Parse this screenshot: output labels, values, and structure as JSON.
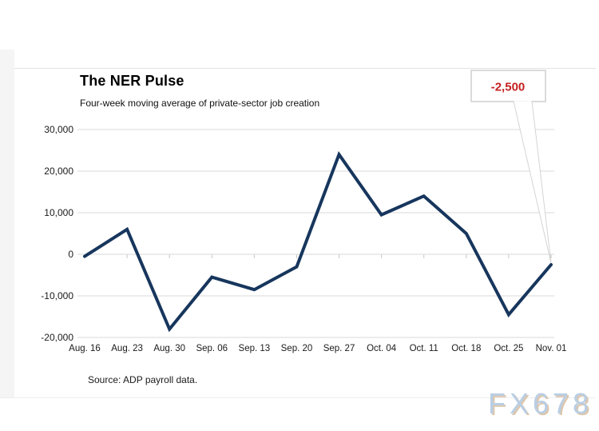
{
  "header": {
    "title": "The NER Pulse",
    "subtitle": "Four-week moving average of private-sector job creation"
  },
  "callout": {
    "label": "-2,500",
    "text_color": "#c42020",
    "border_color": "#cfcfcf"
  },
  "footer": {
    "source": "Source: ADP payroll data."
  },
  "watermark": {
    "text": "FX678",
    "color": "#b9cee4"
  },
  "chart_data": {
    "type": "line",
    "title": "The NER Pulse",
    "subtitle": "Four-week moving average of private-sector job creation",
    "series_name": "Four-week moving average of private-sector job creation",
    "categories": [
      "Aug. 16",
      "Aug. 23",
      "Aug. 30",
      "Sep. 06",
      "Sep. 13",
      "Sep. 20",
      "Sep. 27",
      "Oct. 04",
      "Oct. 11",
      "Oct. 18",
      "Oct. 25",
      "Nov. 01"
    ],
    "values": [
      -500,
      6000,
      -18000,
      -5500,
      -8500,
      -3000,
      24000,
      9500,
      14000,
      5000,
      -14500,
      -2500
    ],
    "ylim": [
      -20000,
      30000
    ],
    "yticks": [
      {
        "label": "30,000",
        "value": 30000
      },
      {
        "label": "20,000",
        "value": 20000
      },
      {
        "label": "10,000",
        "value": 10000
      },
      {
        "label": "0",
        "value": 0
      },
      {
        "label": "-10,000",
        "value": -10000
      },
      {
        "label": "-20,000",
        "value": -20000
      }
    ],
    "grid": true,
    "legend": "none",
    "line_color": "#17365d",
    "grid_color": "#d9d9d9",
    "tick_color": "#c6c6c6",
    "axis_text_color": "#1a1a1a",
    "annotation": {
      "text": "-2,500",
      "target_category": "Nov. 01",
      "target_value": -2500
    },
    "source": "Source: ADP payroll data."
  }
}
